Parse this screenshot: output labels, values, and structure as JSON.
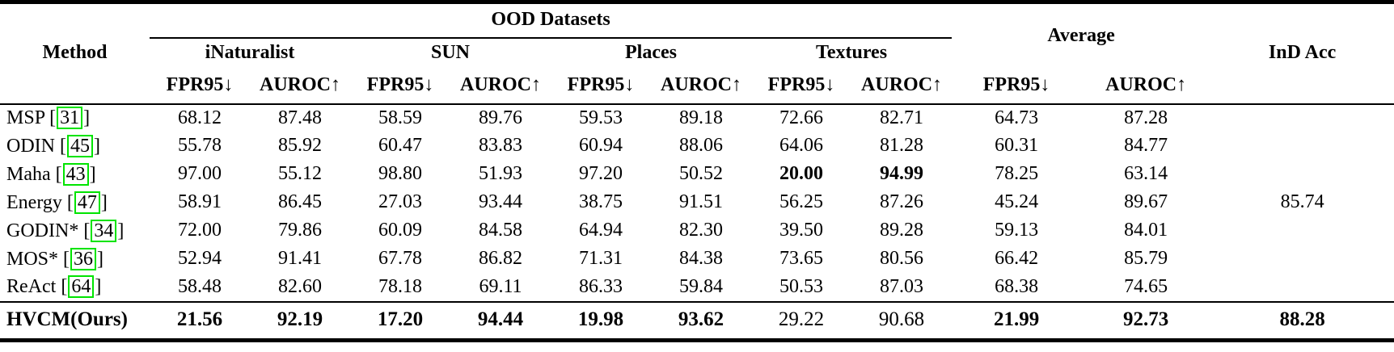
{
  "accent": {
    "citation_box_color": "#00e400",
    "text_color": "#000000",
    "background_color": "#ffffff"
  },
  "table": {
    "header": {
      "method": "Method",
      "ood_group": "OOD Datasets",
      "average_group": "Average",
      "ind_acc": "InD Acc",
      "datasets": [
        "iNaturalist",
        "SUN",
        "Places",
        "Textures"
      ],
      "metric_fpr": "FPR95↓",
      "metric_auroc": "AUROC↑"
    },
    "shared_ind_acc": "85.74",
    "rows": [
      {
        "method": "MSP",
        "cite": "31",
        "values": [
          "68.12",
          "87.48",
          "58.59",
          "89.76",
          "59.53",
          "89.18",
          "72.66",
          "82.71",
          "64.73",
          "87.28"
        ],
        "bold": [
          0,
          0,
          0,
          0,
          0,
          0,
          0,
          0,
          0,
          0
        ]
      },
      {
        "method": "ODIN",
        "cite": "45",
        "values": [
          "55.78",
          "85.92",
          "60.47",
          "83.83",
          "60.94",
          "88.06",
          "64.06",
          "81.28",
          "60.31",
          "84.77"
        ],
        "bold": [
          0,
          0,
          0,
          0,
          0,
          0,
          0,
          0,
          0,
          0
        ]
      },
      {
        "method": "Maha",
        "cite": "43",
        "values": [
          "97.00",
          "55.12",
          "98.80",
          "51.93",
          "97.20",
          "50.52",
          "20.00",
          "94.99",
          "78.25",
          "63.14"
        ],
        "bold": [
          0,
          0,
          0,
          0,
          0,
          0,
          1,
          1,
          0,
          0
        ]
      },
      {
        "method": "Energy",
        "cite": "47",
        "values": [
          "58.91",
          "86.45",
          "27.03",
          "93.44",
          "38.75",
          "91.51",
          "56.25",
          "87.26",
          "45.24",
          "89.67"
        ],
        "bold": [
          0,
          0,
          0,
          0,
          0,
          0,
          0,
          0,
          0,
          0
        ]
      },
      {
        "method": "GODIN*",
        "cite": "34",
        "values": [
          "72.00",
          "79.86",
          "60.09",
          "84.58",
          "64.94",
          "82.30",
          "39.50",
          "89.28",
          "59.13",
          "84.01"
        ],
        "bold": [
          0,
          0,
          0,
          0,
          0,
          0,
          0,
          0,
          0,
          0
        ]
      },
      {
        "method": "MOS*",
        "cite": "36",
        "values": [
          "52.94",
          "91.41",
          "67.78",
          "86.82",
          "71.31",
          "84.38",
          "73.65",
          "80.56",
          "66.42",
          "85.79"
        ],
        "bold": [
          0,
          0,
          0,
          0,
          0,
          0,
          0,
          0,
          0,
          0
        ]
      },
      {
        "method": "ReAct",
        "cite": "64",
        "values": [
          "58.48",
          "82.60",
          "78.18",
          "69.11",
          "86.33",
          "59.84",
          "50.53",
          "87.03",
          "68.38",
          "74.65"
        ],
        "bold": [
          0,
          0,
          0,
          0,
          0,
          0,
          0,
          0,
          0,
          0
        ]
      }
    ],
    "ours_row": {
      "method": "HVCM(Ours)",
      "values": [
        "21.56",
        "92.19",
        "17.20",
        "94.44",
        "19.98",
        "93.62",
        "29.22",
        "90.68",
        "21.99",
        "92.73"
      ],
      "bold": [
        1,
        1,
        1,
        1,
        1,
        1,
        0,
        0,
        1,
        1
      ],
      "ind_acc": "88.28",
      "ind_bold": true
    }
  }
}
